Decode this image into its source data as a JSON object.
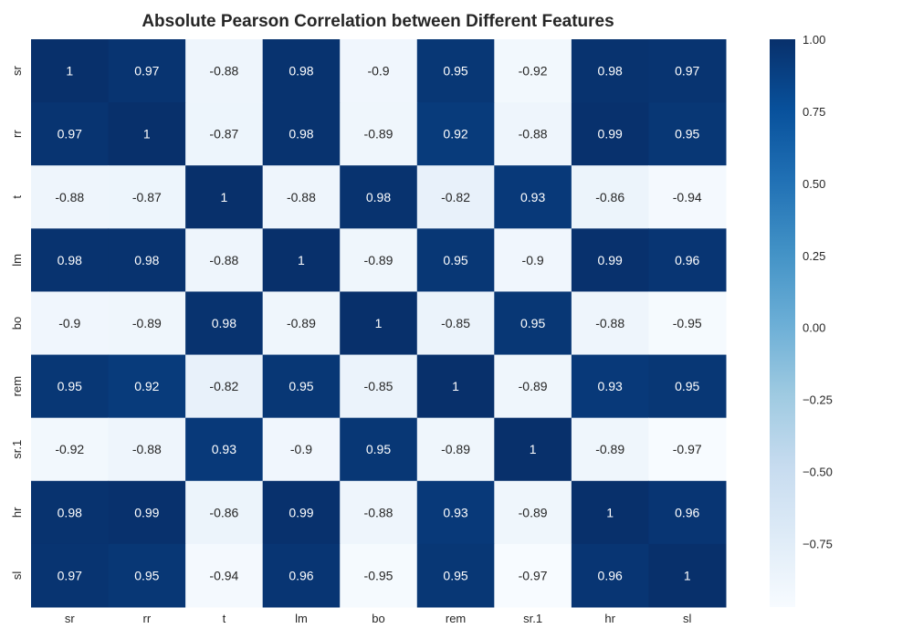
{
  "chart_data": {
    "type": "heatmap",
    "title": "Absolute Pearson Correlation between Different Features",
    "xlabel": "",
    "ylabel": "",
    "x_categories": [
      "sr",
      "rr",
      "t",
      "lm",
      "bo",
      "rem",
      "sr.1",
      "hr",
      "sl"
    ],
    "y_categories": [
      "sr",
      "rr",
      "t",
      "lm",
      "bo",
      "rem",
      "sr.1",
      "hr",
      "sl"
    ],
    "values": [
      [
        1,
        0.97,
        -0.88,
        0.98,
        -0.9,
        0.95,
        -0.92,
        0.98,
        0.97
      ],
      [
        0.97,
        1,
        -0.87,
        0.98,
        -0.89,
        0.92,
        -0.88,
        0.99,
        0.95
      ],
      [
        -0.88,
        -0.87,
        1,
        -0.88,
        0.98,
        -0.82,
        0.93,
        -0.86,
        -0.94
      ],
      [
        0.98,
        0.98,
        -0.88,
        1,
        -0.89,
        0.95,
        -0.9,
        0.99,
        0.96
      ],
      [
        -0.9,
        -0.89,
        0.98,
        -0.89,
        1,
        -0.85,
        0.95,
        -0.88,
        -0.95
      ],
      [
        0.95,
        0.92,
        -0.82,
        0.95,
        -0.85,
        1,
        -0.89,
        0.93,
        0.95
      ],
      [
        -0.92,
        -0.88,
        0.93,
        -0.9,
        0.95,
        -0.89,
        1,
        -0.89,
        -0.97
      ],
      [
        0.98,
        0.99,
        -0.86,
        0.99,
        -0.88,
        0.93,
        -0.89,
        1,
        0.96
      ],
      [
        0.97,
        0.95,
        -0.94,
        0.96,
        -0.95,
        0.95,
        -0.97,
        0.96,
        1
      ]
    ],
    "colorbar": {
      "colormap": "Blues",
      "vmin": -0.97,
      "vmax": 1.0,
      "ticks": [
        1.0,
        0.75,
        0.5,
        0.25,
        0.0,
        -0.25,
        -0.5,
        -0.75
      ],
      "tick_labels": [
        "1.00",
        "0.75",
        "0.50",
        "0.25",
        "0.00",
        "−0.25",
        "−0.50",
        "−0.75"
      ]
    },
    "grid": false,
    "annotations": "cell values shown"
  }
}
